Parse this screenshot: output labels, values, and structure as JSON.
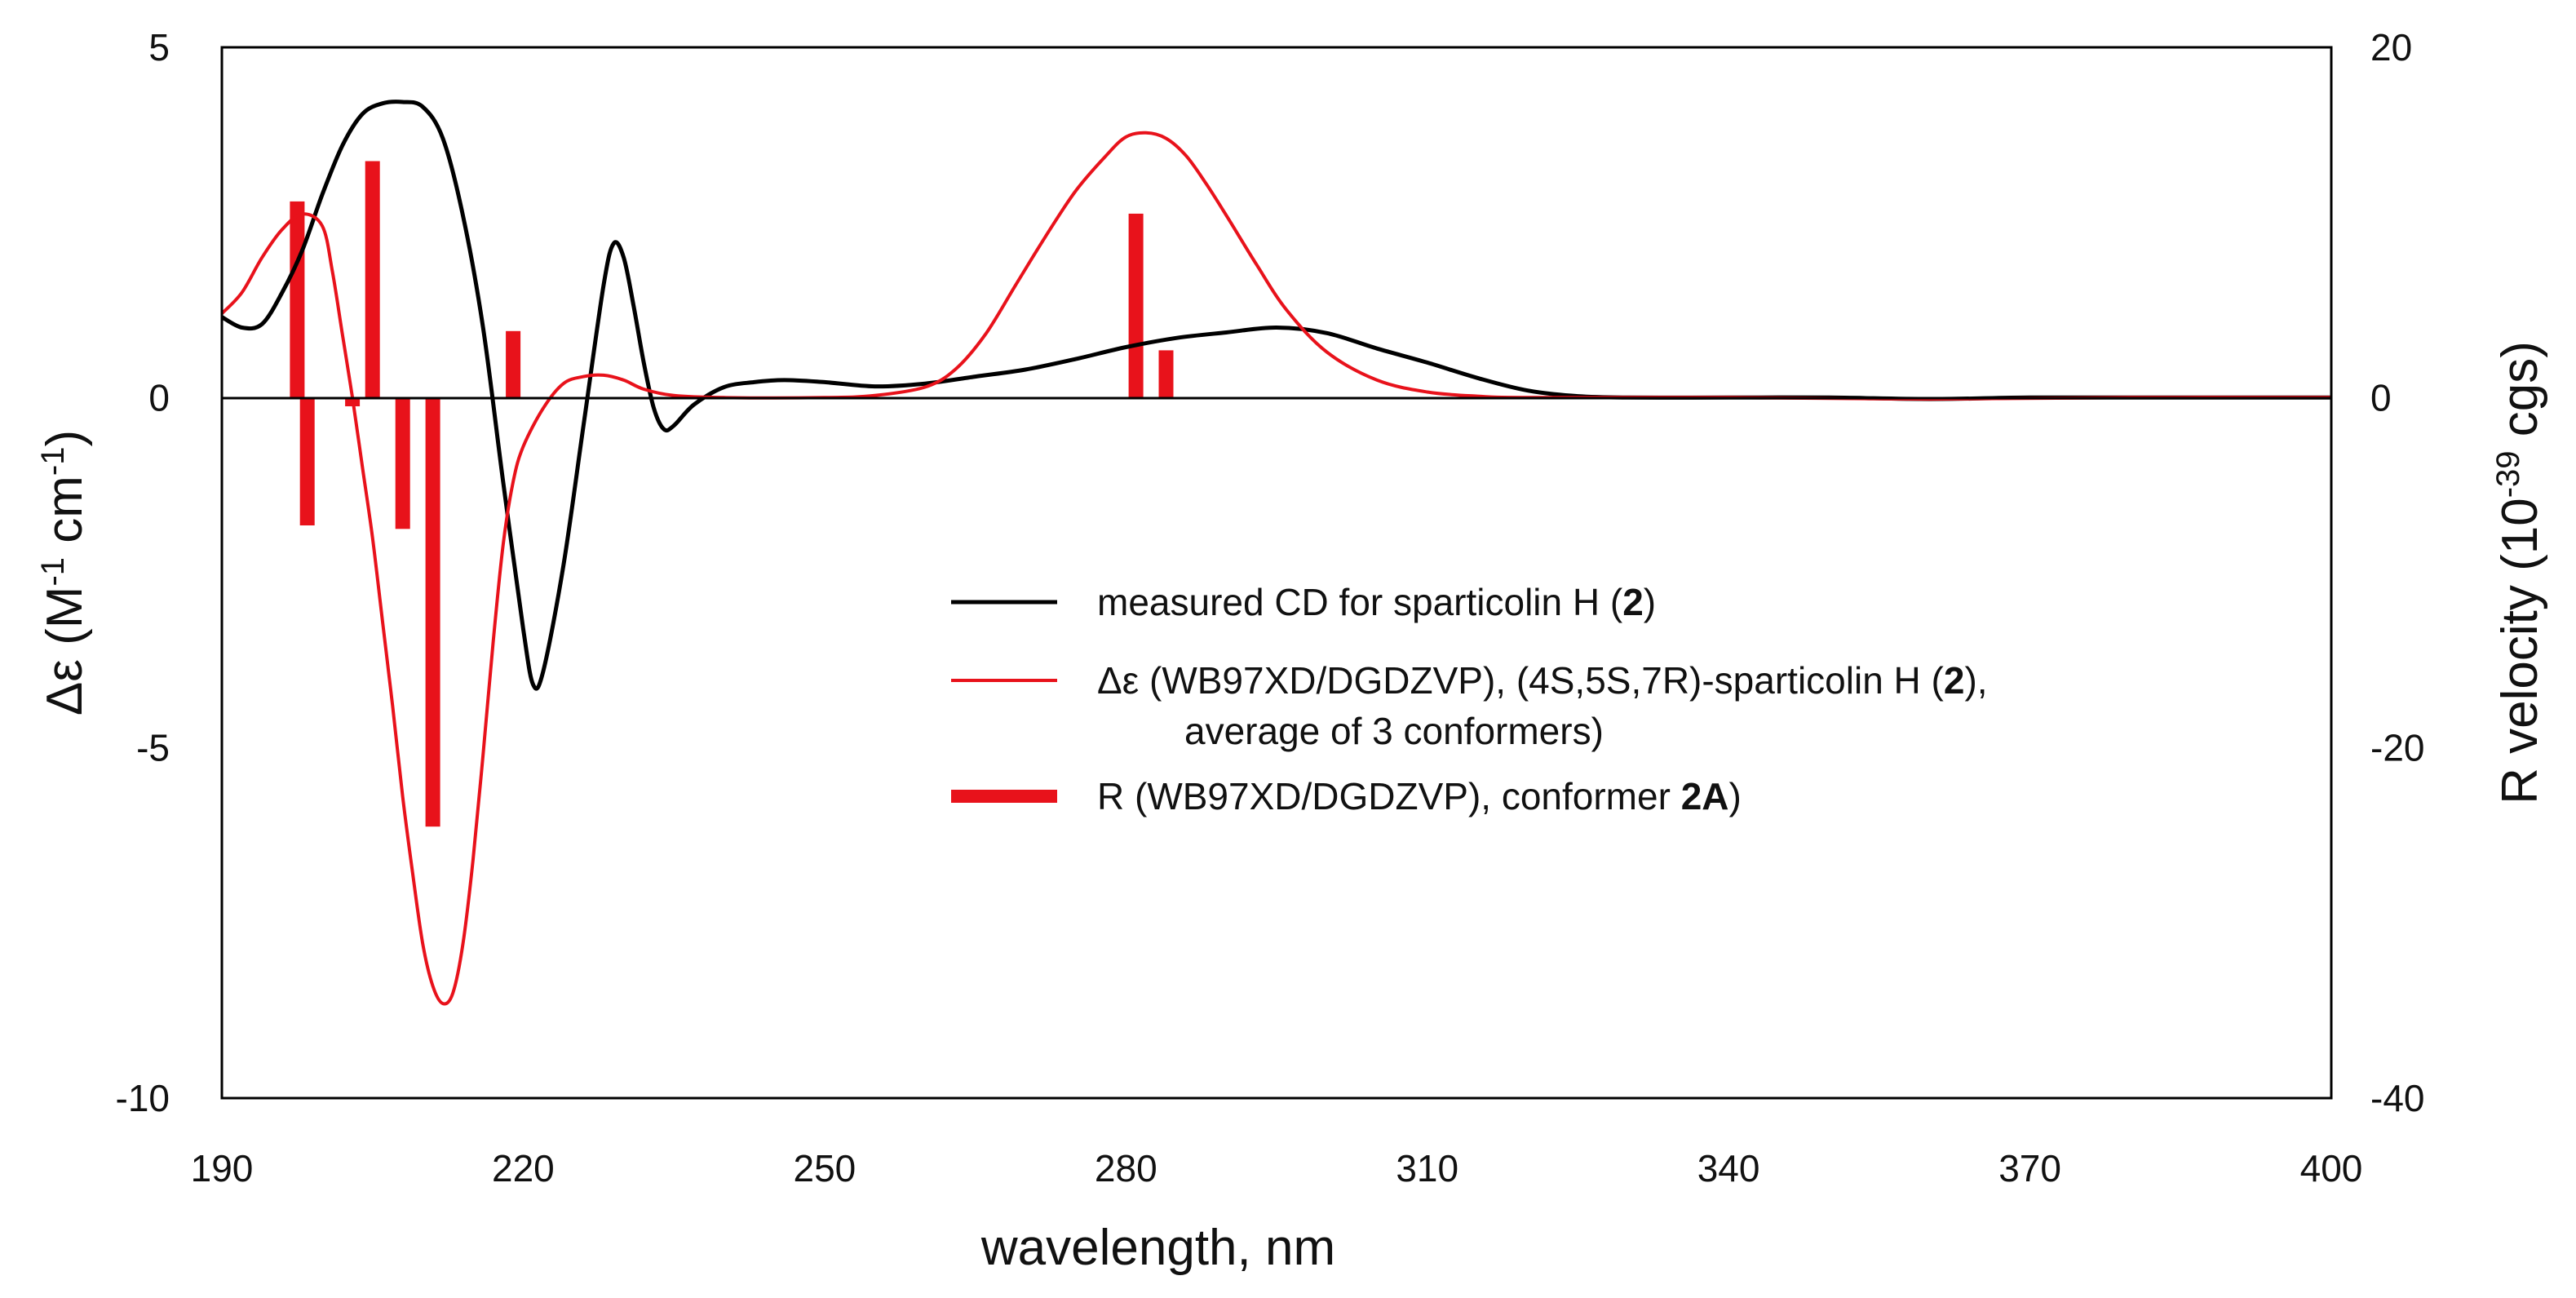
{
  "chart_data": {
    "type": "line",
    "x": {
      "label": "wavelength, nm",
      "range": [
        190,
        400
      ],
      "ticks": [
        190,
        220,
        250,
        280,
        310,
        340,
        370,
        400
      ]
    },
    "y_left": {
      "label": "Δε (M-1 cm-1)",
      "range": [
        -10,
        5
      ],
      "ticks": [
        5,
        0,
        -5,
        -10
      ]
    },
    "y_right": {
      "label": "R velocity (10-39 cgs)",
      "range": [
        -40,
        20
      ],
      "ticks": [
        20,
        0,
        -20,
        -40
      ]
    },
    "grid": false,
    "legend_position": "center-right",
    "series": [
      {
        "name": "measured CD for sparticolin H (2)",
        "kind": "line",
        "axis": "left",
        "color": "#000000",
        "points": [
          [
            190,
            1.15
          ],
          [
            192,
            1.0
          ],
          [
            194,
            1.05
          ],
          [
            196,
            1.5
          ],
          [
            198,
            2.1
          ],
          [
            200,
            2.9
          ],
          [
            202,
            3.6
          ],
          [
            204,
            4.05
          ],
          [
            206,
            4.2
          ],
          [
            208,
            4.22
          ],
          [
            210,
            4.15
          ],
          [
            212,
            3.7
          ],
          [
            214,
            2.6
          ],
          [
            216,
            1.0
          ],
          [
            218,
            -1.2
          ],
          [
            220,
            -3.3
          ],
          [
            221,
            -4.1
          ],
          [
            222,
            -3.9
          ],
          [
            224,
            -2.4
          ],
          [
            226,
            -0.4
          ],
          [
            228,
            1.6
          ],
          [
            229,
            2.2
          ],
          [
            230,
            2.0
          ],
          [
            231,
            1.3
          ],
          [
            232,
            0.5
          ],
          [
            233,
            -0.15
          ],
          [
            234,
            -0.45
          ],
          [
            235,
            -0.4
          ],
          [
            237,
            -0.1
          ],
          [
            240,
            0.15
          ],
          [
            243,
            0.22
          ],
          [
            246,
            0.25
          ],
          [
            250,
            0.22
          ],
          [
            255,
            0.16
          ],
          [
            260,
            0.2
          ],
          [
            265,
            0.3
          ],
          [
            270,
            0.4
          ],
          [
            275,
            0.55
          ],
          [
            280,
            0.72
          ],
          [
            285,
            0.85
          ],
          [
            290,
            0.93
          ],
          [
            295,
            1.0
          ],
          [
            300,
            0.92
          ],
          [
            305,
            0.7
          ],
          [
            310,
            0.5
          ],
          [
            315,
            0.28
          ],
          [
            320,
            0.1
          ],
          [
            325,
            0.02
          ],
          [
            330,
            0.0
          ],
          [
            340,
            0.0
          ],
          [
            350,
            0.0
          ],
          [
            360,
            -0.02
          ],
          [
            370,
            0.0
          ],
          [
            380,
            0.0
          ],
          [
            390,
            0.0
          ],
          [
            400,
            0.0
          ]
        ]
      },
      {
        "name": "Δε (WB97XD/DGDZVP), (4S,5S,7R)-sparticolin H (2), average of 3 conformers)",
        "kind": "line",
        "axis": "left",
        "color": "#e8121b",
        "points": [
          [
            190,
            1.2
          ],
          [
            192,
            1.5
          ],
          [
            194,
            2.0
          ],
          [
            196,
            2.4
          ],
          [
            198,
            2.62
          ],
          [
            200,
            2.45
          ],
          [
            201,
            1.8
          ],
          [
            202,
            0.9
          ],
          [
            203,
            0.0
          ],
          [
            204,
            -1.0
          ],
          [
            205,
            -2.0
          ],
          [
            206,
            -3.2
          ],
          [
            207,
            -4.4
          ],
          [
            208,
            -5.7
          ],
          [
            209,
            -6.8
          ],
          [
            210,
            -7.8
          ],
          [
            211,
            -8.4
          ],
          [
            212,
            -8.65
          ],
          [
            213,
            -8.5
          ],
          [
            214,
            -7.8
          ],
          [
            215,
            -6.6
          ],
          [
            216,
            -5.1
          ],
          [
            217,
            -3.5
          ],
          [
            218,
            -2.1
          ],
          [
            219,
            -1.2
          ],
          [
            220,
            -0.7
          ],
          [
            222,
            -0.15
          ],
          [
            224,
            0.2
          ],
          [
            226,
            0.3
          ],
          [
            228,
            0.32
          ],
          [
            230,
            0.25
          ],
          [
            232,
            0.12
          ],
          [
            235,
            0.03
          ],
          [
            240,
            0.0
          ],
          [
            250,
            0.0
          ],
          [
            255,
            0.03
          ],
          [
            260,
            0.15
          ],
          [
            263,
            0.4
          ],
          [
            266,
            0.9
          ],
          [
            269,
            1.6
          ],
          [
            272,
            2.3
          ],
          [
            275,
            2.95
          ],
          [
            278,
            3.45
          ],
          [
            280,
            3.72
          ],
          [
            282,
            3.78
          ],
          [
            284,
            3.7
          ],
          [
            286,
            3.45
          ],
          [
            288,
            3.05
          ],
          [
            290,
            2.6
          ],
          [
            293,
            1.9
          ],
          [
            296,
            1.25
          ],
          [
            300,
            0.65
          ],
          [
            305,
            0.25
          ],
          [
            310,
            0.08
          ],
          [
            315,
            0.02
          ],
          [
            320,
            0.0
          ],
          [
            340,
            0.0
          ],
          [
            360,
            -0.02
          ],
          [
            380,
            0.0
          ],
          [
            400,
            0.0
          ]
        ]
      },
      {
        "name": "R (WB97XD/DGDZVP), conformer 2A)",
        "kind": "stick",
        "axis": "right",
        "color": "#e8121b",
        "points": [
          [
            197.5,
            11.2
          ],
          [
            198.5,
            -7.3
          ],
          [
            203,
            -0.5
          ],
          [
            205,
            13.5
          ],
          [
            208,
            -7.5
          ],
          [
            211,
            -24.5
          ],
          [
            219,
            3.8
          ],
          [
            281,
            10.5
          ],
          [
            284,
            2.7
          ]
        ]
      }
    ],
    "legend": [
      {
        "series": 0,
        "text_parts": [
          {
            "text": "measured CD for sparticolin H (",
            "bold": false
          },
          {
            "text": "2",
            "bold": true
          },
          {
            "text": ")",
            "bold": false
          }
        ]
      },
      {
        "series": 1,
        "text_parts": [
          {
            "text": "Δε (WB97XD/DGDZVP), (4S,5S,7R)-sparticolin H (",
            "bold": false
          },
          {
            "text": "2",
            "bold": true
          },
          {
            "text": "),",
            "bold": false
          }
        ],
        "continuation": "average of 3 conformers)"
      },
      {
        "series": 2,
        "text_parts": [
          {
            "text": "R (WB97XD/DGDZVP), conformer ",
            "bold": false
          },
          {
            "text": "2A",
            "bold": true
          },
          {
            "text": ")",
            "bold": false
          }
        ]
      }
    ]
  },
  "labels": {
    "xlabel": "wavelength, nm",
    "ylabel_left_main": "Δε (M",
    "ylabel_left_sup1": "-1",
    "ylabel_left_mid": " cm",
    "ylabel_left_sup2": "-1",
    "ylabel_left_end": ")",
    "ylabel_right_main": "R velocity (10",
    "ylabel_right_sup": "-39",
    "ylabel_right_end": "  cgs)"
  }
}
